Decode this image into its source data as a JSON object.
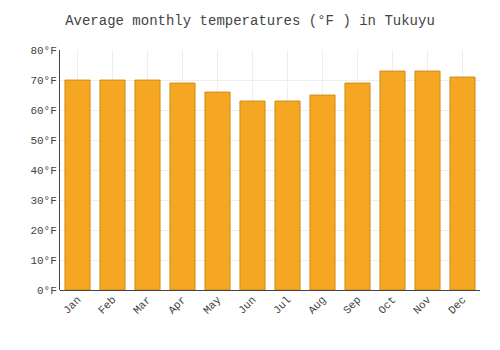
{
  "chart_data": {
    "type": "bar",
    "title": "Average monthly temperatures (°F ) in Tukuyu",
    "categories": [
      "Jan",
      "Feb",
      "Mar",
      "Apr",
      "May",
      "Jun",
      "Jul",
      "Aug",
      "Sep",
      "Oct",
      "Nov",
      "Dec"
    ],
    "values": [
      70,
      70,
      70,
      69,
      66,
      63,
      63,
      65,
      69,
      73,
      73,
      71
    ],
    "color": "#F5A623",
    "ylim": [
      0,
      80
    ],
    "yticks": [
      {
        "value": 0,
        "label": "0°F"
      },
      {
        "value": 10,
        "label": "10°F"
      },
      {
        "value": 20,
        "label": "20°F"
      },
      {
        "value": 30,
        "label": "30°F"
      },
      {
        "value": 40,
        "label": "40°F"
      },
      {
        "value": 50,
        "label": "50°F"
      },
      {
        "value": 60,
        "label": "60°F"
      },
      {
        "value": 70,
        "label": "70°F"
      },
      {
        "value": 80,
        "label": "80°F"
      }
    ],
    "grid": true
  }
}
